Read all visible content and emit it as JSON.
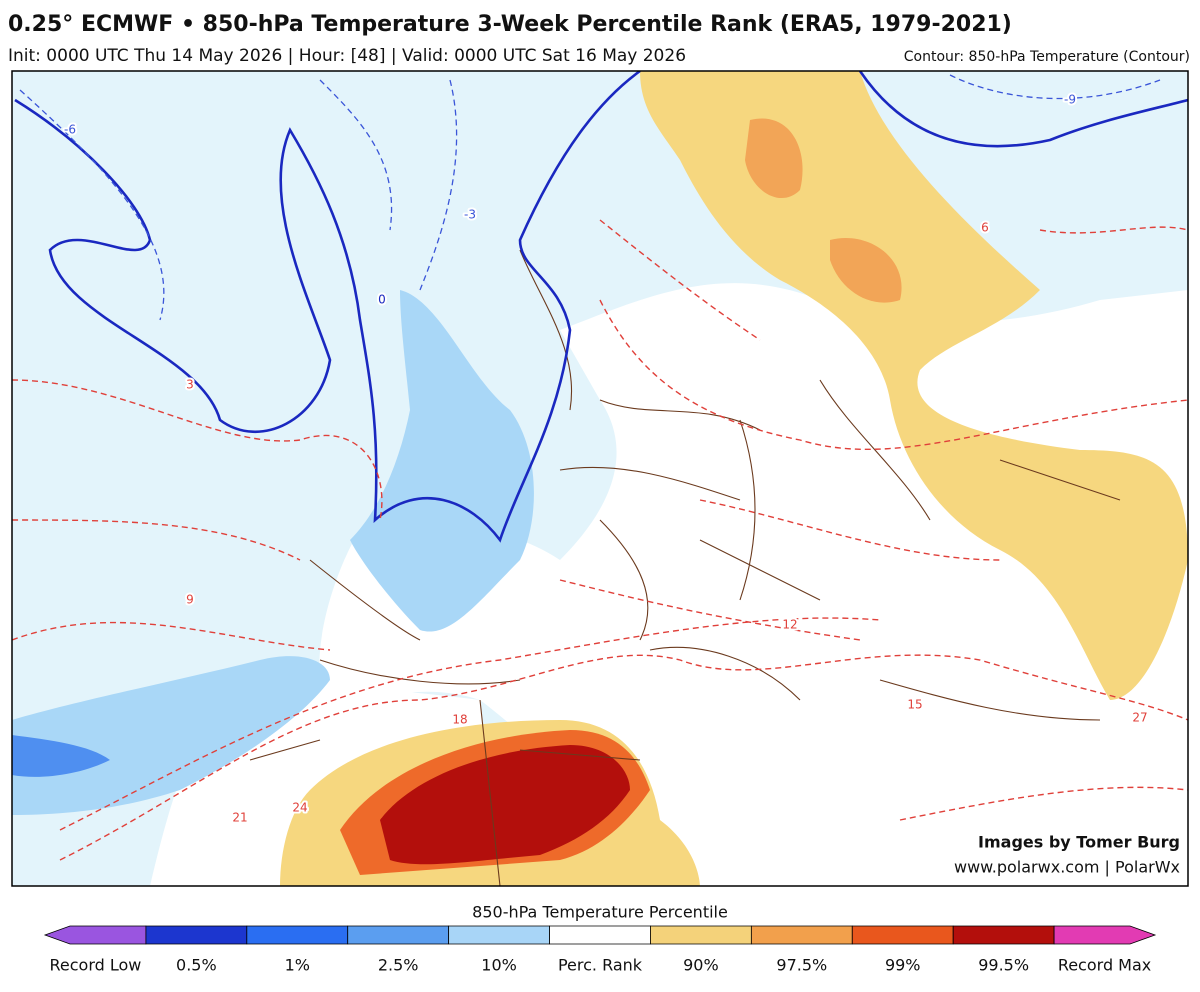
{
  "header": {
    "title": "0.25° ECMWF • 850-hPa Temperature 3-Week Percentile Rank (ERA5, 1979-2021)",
    "subtitle": "Init: 0000 UTC Thu 14 May 2026 | Hour: [48] | Valid: 0000 UTC Sat 16 May 2026",
    "contour_note": "Contour: 850-hPa Temperature (Contour)"
  },
  "map": {
    "credit": [
      "Images by Tomer Burg",
      "www.polarwx.com | PolarWx"
    ],
    "contour_labels": [
      "-9",
      "-6",
      "-3",
      "0",
      "3",
      "6",
      "9",
      "12",
      "15",
      "18",
      "21",
      "24",
      "27"
    ]
  },
  "colorbar": {
    "title": "850-hPa Temperature Percentile",
    "labels": [
      "Record Low",
      "0.5%",
      "1%",
      "2.5%",
      "10%",
      "Perc. Rank",
      "90%",
      "97.5%",
      "99%",
      "99.5%",
      "Record Max"
    ],
    "colors": [
      "#9a55e0",
      "#1c36cf",
      "#2a6ef2",
      "#5b9ef0",
      "#a8d5f7",
      "#ffffff",
      "#f4d27a",
      "#f2a04c",
      "#e9571d",
      "#b30f0c",
      "#e23bb3"
    ]
  }
}
